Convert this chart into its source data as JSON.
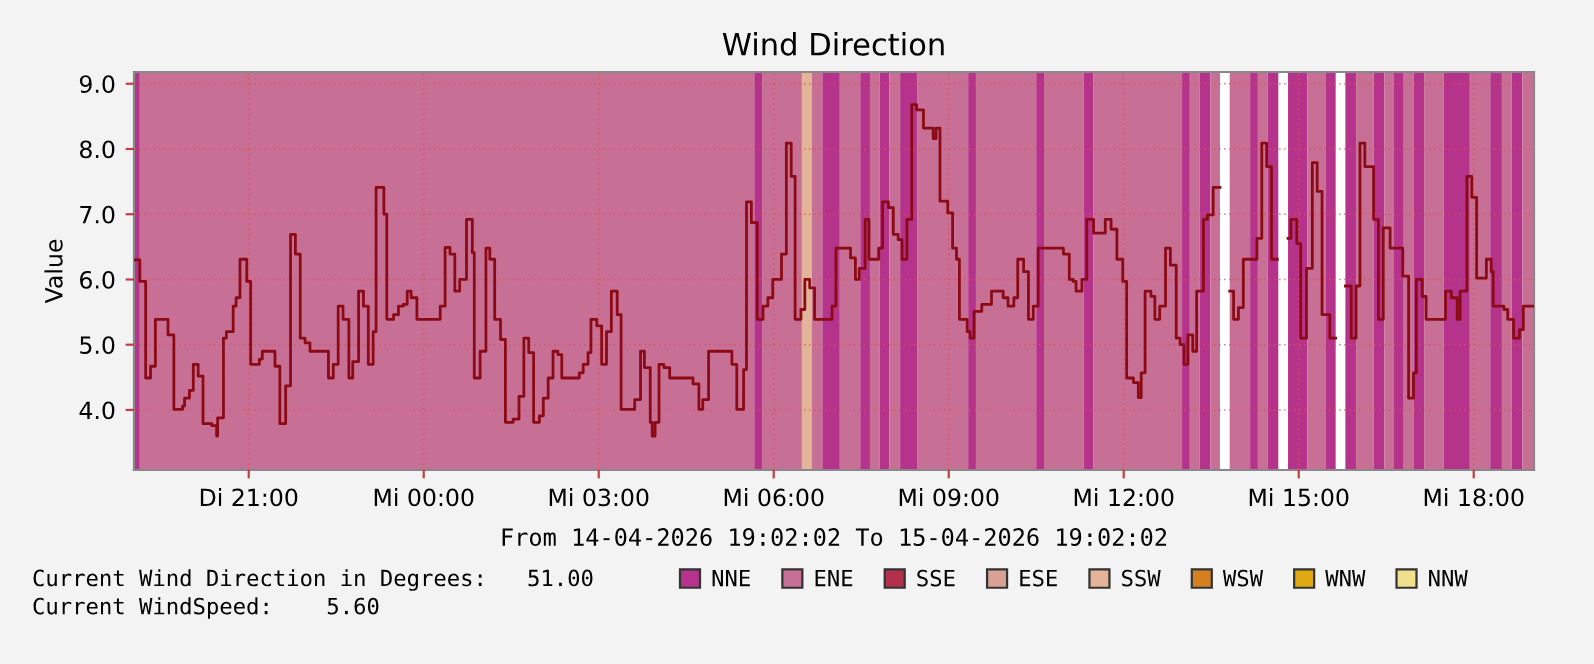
{
  "chart_data": {
    "type": "step",
    "title": "Wind Direction",
    "xlabel": "From 14-04-2026 19:02:02 To 15-04-2026 19:02:02",
    "ylabel": "Value",
    "annotations": [
      "Current Wind Direction in Degrees:   51.00",
      "Current WindSpeed:    5.60"
    ],
    "xlim": [
      "2026-04-14T19:02",
      "2026-04-15T19:02"
    ],
    "ylim": [
      3.08,
      9.18
    ],
    "xticks": [
      {
        "value": "2026-04-14T21:00",
        "label": "Di 21:00"
      },
      {
        "value": "2026-04-15T00:00",
        "label": "Mi 00:00"
      },
      {
        "value": "2026-04-15T03:00",
        "label": "Mi 03:00"
      },
      {
        "value": "2026-04-15T06:00",
        "label": "Mi 06:00"
      },
      {
        "value": "2026-04-15T09:00",
        "label": "Mi 09:00"
      },
      {
        "value": "2026-04-15T12:00",
        "label": "Mi 12:00"
      },
      {
        "value": "2026-04-15T15:00",
        "label": "Mi 15:00"
      },
      {
        "value": "2026-04-15T18:00",
        "label": "Mi 18:00"
      }
    ],
    "yticks": [
      {
        "value": 4,
        "label": "4.0"
      },
      {
        "value": 5,
        "label": "5.0"
      },
      {
        "value": 6,
        "label": "6.0"
      },
      {
        "value": 7,
        "label": "7.0"
      },
      {
        "value": 8,
        "label": "8.0"
      },
      {
        "value": 9,
        "label": "9.0"
      }
    ],
    "grid": true,
    "legend": "bottom",
    "bands": [
      {
        "axis": "x",
        "from": "2026-04-14T19:02",
        "to": "2026-04-14T19:08",
        "color": "#b5338a"
      },
      {
        "axis": "x",
        "from": "2026-04-14T19:08",
        "to": "2026-04-15T05:40",
        "color": "#c86f96"
      },
      {
        "axis": "x",
        "from": "2026-04-15T05:40",
        "to": "2026-04-15T05:48",
        "color": "#b5338a"
      },
      {
        "axis": "x",
        "from": "2026-04-15T05:48",
        "to": "2026-04-15T06:29",
        "color": "#c86f96"
      },
      {
        "axis": "x",
        "from": "2026-04-15T06:29",
        "to": "2026-04-15T06:39",
        "color": "#e3b39a"
      },
      {
        "axis": "x",
        "from": "2026-04-15T06:39",
        "to": "2026-04-15T06:50",
        "color": "#c86f96"
      },
      {
        "axis": "x",
        "from": "2026-04-15T06:50",
        "to": "2026-04-15T07:08",
        "color": "#b5338a"
      },
      {
        "axis": "x",
        "from": "2026-04-15T07:08",
        "to": "2026-04-15T07:29",
        "color": "#c86f96"
      },
      {
        "axis": "x",
        "from": "2026-04-15T07:29",
        "to": "2026-04-15T07:39",
        "color": "#b5338a"
      },
      {
        "axis": "x",
        "from": "2026-04-15T07:39",
        "to": "2026-04-15T07:49",
        "color": "#c86f96"
      },
      {
        "axis": "x",
        "from": "2026-04-15T07:49",
        "to": "2026-04-15T07:59",
        "color": "#b5338a"
      },
      {
        "axis": "x",
        "from": "2026-04-15T07:59",
        "to": "2026-04-15T08:10",
        "color": "#c86f96"
      },
      {
        "axis": "x",
        "from": "2026-04-15T08:10",
        "to": "2026-04-15T08:28",
        "color": "#b5338a"
      },
      {
        "axis": "x",
        "from": "2026-04-15T08:28",
        "to": "2026-04-15T09:20",
        "color": "#c86f96"
      },
      {
        "axis": "x",
        "from": "2026-04-15T09:20",
        "to": "2026-04-15T09:28",
        "color": "#b5338a"
      },
      {
        "axis": "x",
        "from": "2026-04-15T09:28",
        "to": "2026-04-15T10:30",
        "color": "#c86f96"
      },
      {
        "axis": "x",
        "from": "2026-04-15T10:30",
        "to": "2026-04-15T10:38",
        "color": "#b5338a"
      },
      {
        "axis": "x",
        "from": "2026-04-15T10:38",
        "to": "2026-04-15T11:19",
        "color": "#c86f96"
      },
      {
        "axis": "x",
        "from": "2026-04-15T11:19",
        "to": "2026-04-15T11:29",
        "color": "#b5338a"
      },
      {
        "axis": "x",
        "from": "2026-04-15T11:29",
        "to": "2026-04-15T13:00",
        "color": "#c86f96"
      },
      {
        "axis": "x",
        "from": "2026-04-15T13:00",
        "to": "2026-04-15T13:08",
        "color": "#b5338a"
      },
      {
        "axis": "x",
        "from": "2026-04-15T13:08",
        "to": "2026-04-15T13:18",
        "color": "#c86f96"
      },
      {
        "axis": "x",
        "from": "2026-04-15T13:18",
        "to": "2026-04-15T13:29",
        "color": "#b5338a"
      },
      {
        "axis": "x",
        "from": "2026-04-15T13:29",
        "to": "2026-04-15T13:39",
        "color": "#c86f96"
      },
      {
        "axis": "x",
        "from": "2026-04-15T13:49",
        "to": "2026-04-15T14:10",
        "color": "#c86f96"
      },
      {
        "axis": "x",
        "from": "2026-04-15T14:10",
        "to": "2026-04-15T14:18",
        "color": "#b5338a"
      },
      {
        "axis": "x",
        "from": "2026-04-15T14:18",
        "to": "2026-04-15T14:28",
        "color": "#c86f96"
      },
      {
        "axis": "x",
        "from": "2026-04-15T14:28",
        "to": "2026-04-15T14:39",
        "color": "#b5338a"
      },
      {
        "axis": "x",
        "from": "2026-04-15T14:49",
        "to": "2026-04-15T15:09",
        "color": "#b5338a"
      },
      {
        "axis": "x",
        "from": "2026-04-15T15:09",
        "to": "2026-04-15T15:28",
        "color": "#c86f96"
      },
      {
        "axis": "x",
        "from": "2026-04-15T15:28",
        "to": "2026-04-15T15:38",
        "color": "#b5338a"
      },
      {
        "axis": "x",
        "from": "2026-04-15T15:48",
        "to": "2026-04-15T15:59",
        "color": "#b5338a"
      },
      {
        "axis": "x",
        "from": "2026-04-15T15:59",
        "to": "2026-04-15T16:17",
        "color": "#c86f96"
      },
      {
        "axis": "x",
        "from": "2026-04-15T16:17",
        "to": "2026-04-15T16:28",
        "color": "#b5338a"
      },
      {
        "axis": "x",
        "from": "2026-04-15T16:28",
        "to": "2026-04-15T16:38",
        "color": "#c86f96"
      },
      {
        "axis": "x",
        "from": "2026-04-15T16:38",
        "to": "2026-04-15T16:48",
        "color": "#b5338a"
      },
      {
        "axis": "x",
        "from": "2026-04-15T16:48",
        "to": "2026-04-15T16:58",
        "color": "#c86f96"
      },
      {
        "axis": "x",
        "from": "2026-04-15T16:58",
        "to": "2026-04-15T17:09",
        "color": "#b5338a"
      },
      {
        "axis": "x",
        "from": "2026-04-15T17:09",
        "to": "2026-04-15T17:29",
        "color": "#c86f96"
      },
      {
        "axis": "x",
        "from": "2026-04-15T17:29",
        "to": "2026-04-15T17:56",
        "color": "#b5338a"
      },
      {
        "axis": "x",
        "from": "2026-04-15T17:56",
        "to": "2026-04-15T18:17",
        "color": "#c86f96"
      },
      {
        "axis": "x",
        "from": "2026-04-15T18:17",
        "to": "2026-04-15T18:29",
        "color": "#b5338a"
      },
      {
        "axis": "x",
        "from": "2026-04-15T18:29",
        "to": "2026-04-15T18:39",
        "color": "#c86f96"
      },
      {
        "axis": "x",
        "from": "2026-04-15T18:39",
        "to": "2026-04-15T18:50",
        "color": "#b5338a"
      },
      {
        "axis": "x",
        "from": "2026-04-15T18:50",
        "to": "2026-04-15T19:02",
        "color": "#c86f96"
      }
    ],
    "series": [
      {
        "name": "NNE",
        "color": "#b5338a"
      },
      {
        "name": "ENE",
        "color": "#c86f96"
      },
      {
        "name": "SSE",
        "color": "#b3304a"
      },
      {
        "name": "ESE",
        "color": "#d9a095"
      },
      {
        "name": "SSW",
        "color": "#e3b39a"
      },
      {
        "name": "WSW",
        "color": "#d4801f"
      },
      {
        "name": "WNW",
        "color": "#e0a812"
      },
      {
        "name": "NNW",
        "color": "#f0e08c"
      },
      {
        "color": "#8b0a14",
        "x": [
          "2026-04-14T19:02",
          "2026-04-14T19:08",
          "2026-04-14T19:14",
          "2026-04-14T19:19",
          "2026-04-14T19:24",
          "2026-04-14T19:37",
          "2026-04-14T19:43",
          "2026-04-14T19:52",
          "2026-04-14T19:54",
          "2026-04-14T19:59",
          "2026-04-14T20:03",
          "2026-04-14T20:08",
          "2026-04-14T20:13",
          "2026-04-14T20:22",
          "2026-04-14T20:27",
          "2026-04-14T20:28",
          "2026-04-14T20:34",
          "2026-04-14T20:37",
          "2026-04-14T20:44",
          "2026-04-14T20:47",
          "2026-04-14T20:51",
          "2026-04-14T20:58",
          "2026-04-14T21:02",
          "2026-04-14T21:11",
          "2026-04-14T21:14",
          "2026-04-14T21:27",
          "2026-04-14T21:32",
          "2026-04-14T21:38",
          "2026-04-14T21:43",
          "2026-04-14T21:48",
          "2026-04-14T21:53",
          "2026-04-14T21:58",
          "2026-04-14T22:03",
          "2026-04-14T22:22",
          "2026-04-14T22:27",
          "2026-04-14T22:32",
          "2026-04-14T22:37",
          "2026-04-14T22:43",
          "2026-04-14T22:47",
          "2026-04-14T22:53",
          "2026-04-14T22:58",
          "2026-04-14T23:03",
          "2026-04-14T23:08",
          "2026-04-14T23:11",
          "2026-04-14T23:19",
          "2026-04-14T23:22",
          "2026-04-14T23:29",
          "2026-04-14T23:34",
          "2026-04-14T23:39",
          "2026-04-14T23:43",
          "2026-04-14T23:47",
          "2026-04-14T23:53",
          "2026-04-15T00:17",
          "2026-04-15T00:22",
          "2026-04-15T00:27",
          "2026-04-15T00:32",
          "2026-04-15T00:37",
          "2026-04-15T00:44",
          "2026-04-15T00:50",
          "2026-04-15T00:52",
          "2026-04-15T00:58",
          "2026-04-15T01:04",
          "2026-04-15T01:08",
          "2026-04-15T01:13",
          "2026-04-15T01:19",
          "2026-04-15T01:24",
          "2026-04-15T01:32",
          "2026-04-15T01:38",
          "2026-04-15T01:43",
          "2026-04-15T01:48",
          "2026-04-15T01:53",
          "2026-04-15T01:59",
          "2026-04-15T02:03",
          "2026-04-15T02:08",
          "2026-04-15T02:13",
          "2026-04-15T02:18",
          "2026-04-15T02:22",
          "2026-04-15T02:40",
          "2026-04-15T02:44",
          "2026-04-15T02:49",
          "2026-04-15T02:52",
          "2026-04-15T02:58",
          "2026-04-15T03:03",
          "2026-04-15T03:08",
          "2026-04-15T03:13",
          "2026-04-15T03:19",
          "2026-04-15T03:23",
          "2026-04-15T03:37",
          "2026-04-15T03:43",
          "2026-04-15T03:47",
          "2026-04-15T03:53",
          "2026-04-15T03:55",
          "2026-04-15T03:58",
          "2026-04-15T04:02",
          "2026-04-15T04:07",
          "2026-04-15T04:13",
          "2026-04-15T04:37",
          "2026-04-15T04:43",
          "2026-04-15T04:47",
          "2026-04-15T04:53",
          "2026-04-15T05:17",
          "2026-04-15T05:22",
          "2026-04-15T05:29",
          "2026-04-15T05:32",
          "2026-04-15T05:37",
          "2026-04-15T05:43",
          "2026-04-15T05:49",
          "2026-04-15T05:54",
          "2026-04-15T05:59",
          "2026-04-15T06:08",
          "2026-04-15T06:13",
          "2026-04-15T06:18",
          "2026-04-15T06:22",
          "2026-04-15T06:28",
          "2026-04-15T06:32",
          "2026-04-15T06:37",
          "2026-04-15T06:42",
          "2026-04-15T07:00",
          "2026-04-15T07:04",
          "2026-04-15T07:19",
          "2026-04-15T07:24",
          "2026-04-15T07:28",
          "2026-04-15T07:34",
          "2026-04-15T07:38",
          "2026-04-15T07:48",
          "2026-04-15T07:52",
          "2026-04-15T07:58",
          "2026-04-15T08:03",
          "2026-04-15T08:08",
          "2026-04-15T08:12",
          "2026-04-15T08:17",
          "2026-04-15T08:22",
          "2026-04-15T08:27",
          "2026-04-15T08:34",
          "2026-04-15T08:44",
          "2026-04-15T08:47",
          "2026-04-15T08:51",
          "2026-04-15T08:59",
          "2026-04-15T09:04",
          "2026-04-15T09:08",
          "2026-04-15T09:11",
          "2026-04-15T09:19",
          "2026-04-15T09:22",
          "2026-04-15T09:26",
          "2026-04-15T09:34",
          "2026-04-15T09:44",
          "2026-04-15T09:56",
          "2026-04-15T10:01",
          "2026-04-15T10:07",
          "2026-04-15T10:11",
          "2026-04-15T10:17",
          "2026-04-15T10:22",
          "2026-04-15T10:27",
          "2026-04-15T10:32",
          "2026-04-15T10:58",
          "2026-04-15T11:04",
          "2026-04-15T11:08",
          "2026-04-15T11:11",
          "2026-04-15T11:17",
          "2026-04-15T11:22",
          "2026-04-15T11:29",
          "2026-04-15T11:41",
          "2026-04-15T11:47",
          "2026-04-15T11:53",
          "2026-04-15T11:59",
          "2026-04-15T12:03",
          "2026-04-15T12:10",
          "2026-04-15T12:15",
          "2026-04-15T12:18",
          "2026-04-15T12:22",
          "2026-04-15T12:28",
          "2026-04-15T12:32",
          "2026-04-15T12:37",
          "2026-04-15T12:43",
          "2026-04-15T12:48",
          "2026-04-15T12:54",
          "2026-04-15T12:58",
          "2026-04-15T13:02",
          "2026-04-15T13:06",
          "2026-04-15T13:11",
          "2026-04-15T13:15",
          "2026-04-15T13:22",
          "2026-04-15T13:26",
          "2026-04-15T13:32",
          "2026-04-15T13:39",
          "2026-04-15T13:49",
          "2026-04-15T13:53",
          "2026-04-15T13:58",
          "2026-04-15T14:03",
          "2026-04-15T14:17",
          "2026-04-15T14:22",
          "2026-04-15T14:27",
          "2026-04-15T14:32",
          "2026-04-15T14:38",
          "2026-04-15T14:49",
          "2026-04-15T14:52",
          "2026-04-15T14:58",
          "2026-04-15T15:02",
          "2026-04-15T15:08",
          "2026-04-15T15:14",
          "2026-04-15T15:19",
          "2026-04-15T15:24",
          "2026-04-15T15:32",
          "2026-04-15T15:38",
          "2026-04-15T15:48",
          "2026-04-15T15:54",
          "2026-04-15T15:59",
          "2026-04-15T16:03",
          "2026-04-15T16:08",
          "2026-04-15T16:17",
          "2026-04-15T16:22",
          "2026-04-15T16:27",
          "2026-04-15T16:34",
          "2026-04-15T16:47",
          "2026-04-15T16:53",
          "2026-04-15T16:58",
          "2026-04-15T17:01",
          "2026-04-15T17:07",
          "2026-04-15T17:11",
          "2026-04-15T17:31",
          "2026-04-15T17:37",
          "2026-04-15T17:43",
          "2026-04-15T17:46",
          "2026-04-15T17:53",
          "2026-04-15T17:58",
          "2026-04-15T18:03",
          "2026-04-15T18:13",
          "2026-04-15T18:18",
          "2026-04-15T18:20",
          "2026-04-15T18:31",
          "2026-04-15T18:35",
          "2026-04-15T18:41",
          "2026-04-15T18:47",
          "2026-04-15T18:51",
          "2026-04-15T19:02"
        ],
        "values": [
          6.3,
          5.97,
          4.49,
          4.67,
          5.39,
          5.15,
          4.01,
          4.06,
          4.18,
          4.3,
          4.7,
          4.52,
          3.79,
          3.76,
          3.6,
          3.88,
          5.1,
          5.2,
          5.59,
          5.72,
          6.31,
          5.97,
          4.7,
          4.78,
          4.9,
          4.67,
          3.79,
          4.37,
          6.69,
          6.39,
          5.1,
          5.03,
          4.9,
          4.49,
          4.7,
          5.59,
          5.39,
          4.49,
          4.74,
          5.82,
          5.59,
          4.7,
          5.2,
          7.41,
          7.0,
          5.39,
          5.46,
          5.59,
          5.62,
          5.82,
          5.72,
          5.39,
          5.59,
          6.49,
          6.39,
          5.82,
          6.0,
          6.92,
          6.41,
          4.49,
          4.9,
          6.48,
          6.31,
          5.39,
          5.08,
          3.81,
          3.86,
          4.21,
          5.1,
          4.88,
          3.81,
          3.91,
          4.18,
          4.49,
          4.9,
          4.85,
          4.49,
          4.57,
          4.7,
          4.88,
          5.39,
          5.29,
          4.7,
          5.2,
          5.82,
          5.46,
          4.01,
          4.16,
          4.9,
          4.65,
          3.81,
          3.6,
          3.81,
          4.7,
          4.65,
          4.49,
          4.4,
          4.01,
          4.16,
          4.9,
          4.7,
          4.01,
          4.62,
          7.19,
          6.87,
          5.39,
          5.59,
          5.72,
          6.0,
          6.39,
          8.09,
          7.58,
          5.39,
          5.54,
          6.0,
          5.87,
          5.39,
          5.59,
          6.48,
          6.33,
          6.0,
          6.17,
          6.92,
          6.31,
          6.48,
          7.19,
          7.1,
          6.69,
          6.61,
          6.31,
          6.92,
          8.68,
          8.6,
          8.32,
          8.16,
          8.32,
          7.2,
          7.02,
          6.48,
          6.31,
          5.39,
          5.2,
          5.1,
          5.51,
          5.62,
          5.82,
          5.72,
          5.59,
          5.72,
          6.31,
          6.12,
          5.39,
          5.59,
          6.48,
          6.39,
          6.0,
          5.97,
          5.82,
          6.0,
          6.92,
          6.71,
          6.92,
          6.77,
          6.31,
          5.97,
          4.49,
          4.42,
          4.19,
          4.57,
          5.82,
          5.74,
          5.39,
          5.59,
          6.48,
          6.22,
          5.1,
          5.0,
          4.7,
          5.15,
          4.9,
          5.82,
          6.92,
          6.99,
          7.41,
          null,
          5.82,
          5.39,
          5.57,
          6.31,
          6.63,
          8.09,
          7.73,
          6.31,
          null,
          6.63,
          6.92,
          6.55,
          5.1,
          6.17,
          7.79,
          7.35,
          5.46,
          5.1,
          null,
          5.9,
          5.1,
          5.9,
          8.09,
          7.73,
          6.92,
          5.39,
          6.79,
          6.48,
          6.05,
          4.18,
          4.57,
          6.0,
          5.74,
          5.39,
          5.82,
          5.72,
          5.39,
          5.82,
          7.58,
          7.26,
          6.02,
          6.31,
          6.12,
          5.59,
          5.54,
          5.39,
          5.1,
          5.23,
          5.59,
          5.59
        ]
      }
    ]
  }
}
